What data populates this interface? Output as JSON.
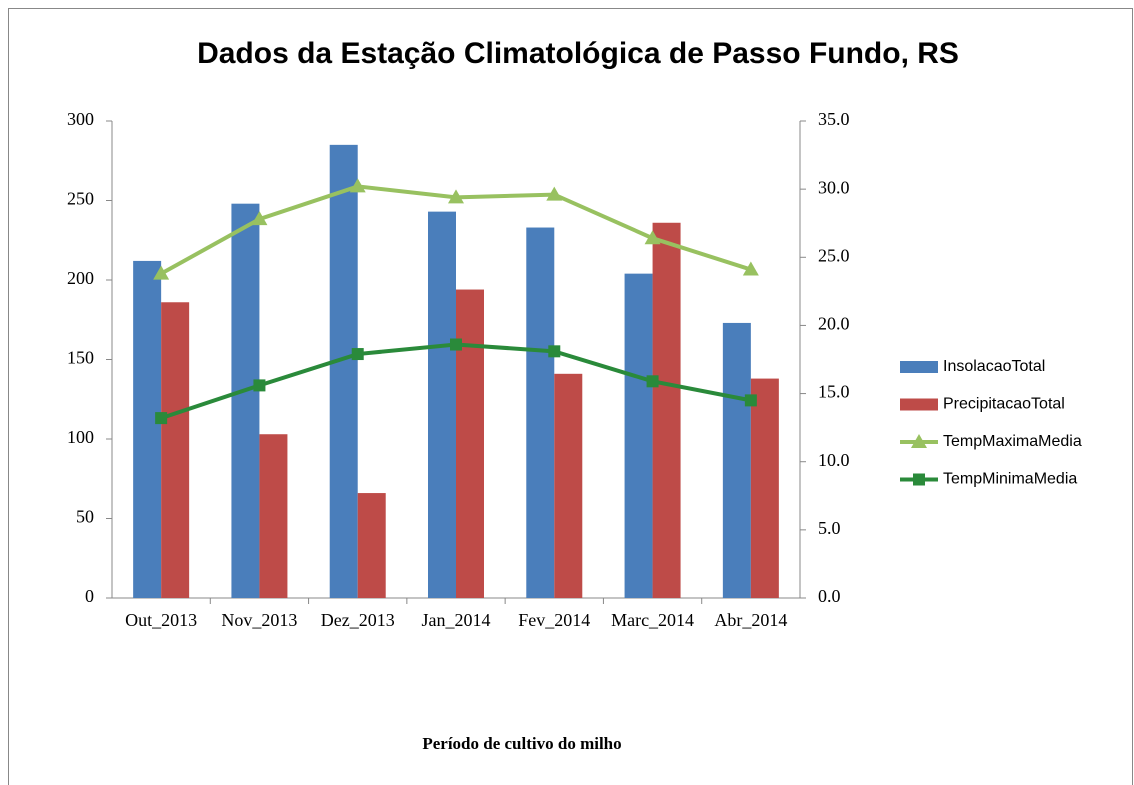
{
  "chart_data": {
    "type": "bar-line",
    "title": "Dados  da Estação Climatológica de Passo Fundo, RS",
    "x_label": "Período de cultivo do milho",
    "categories": [
      "Out_2013",
      "Nov_2013",
      "Dez_2013",
      "Jan_2014",
      "Fev_2014",
      "Marc_2014",
      "Abr_2014"
    ],
    "series": [
      {
        "name": "InsolacaoTotal",
        "type": "bar",
        "color": "#4a7ebb",
        "values": [
          212,
          248,
          285,
          243,
          233,
          204,
          173
        ]
      },
      {
        "name": "PrecipitacaoTotal",
        "type": "bar",
        "color": "#be4b48",
        "values": [
          186,
          103,
          66,
          194,
          141,
          236,
          138
        ]
      },
      {
        "name": "TempMaximaMedia",
        "type": "line",
        "marker": "triangle",
        "axis": "y2",
        "color": "#98c160",
        "values": [
          23.8,
          27.8,
          30.2,
          29.4,
          29.6,
          26.4,
          24.1
        ]
      },
      {
        "name": "TempMinimaMedia",
        "type": "line",
        "marker": "square",
        "axis": "y2",
        "color": "#2a8a3a",
        "values": [
          13.2,
          15.6,
          17.9,
          18.6,
          18.1,
          15.9,
          14.5
        ]
      }
    ],
    "ylim": [
      0,
      300
    ],
    "yticks": [
      0,
      50,
      100,
      150,
      200,
      250,
      300
    ],
    "y2lim": [
      0,
      35
    ],
    "y2ticks": [
      {
        "value": 0,
        "label": "0.0"
      },
      {
        "value": 5,
        "label": "5.0"
      },
      {
        "value": 10,
        "label": "10.0"
      },
      {
        "value": 15,
        "label": "15.0"
      },
      {
        "value": 20,
        "label": "20.0"
      },
      {
        "value": 25,
        "label": "25.0"
      },
      {
        "value": 30,
        "label": "30.0"
      },
      {
        "value": 35,
        "label": "35.0"
      }
    ],
    "grid": false,
    "legend": "right"
  }
}
